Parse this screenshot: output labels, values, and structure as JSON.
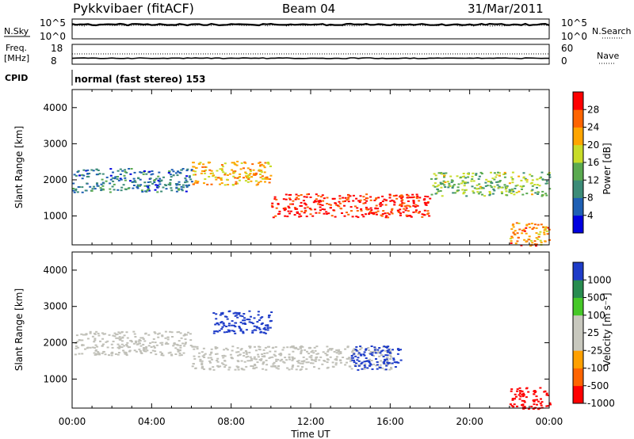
{
  "header": {
    "station": "Pykkvibaer (fitACF)",
    "beam": "Beam 04",
    "date": "31/Mar/2011"
  },
  "noise_panel": {
    "left_label": "N.Sky",
    "right_label": "N.Search",
    "left_ticks": [
      "10^5",
      "10^0"
    ],
    "right_ticks": [
      "10^5",
      "10^0"
    ]
  },
  "freq_panel": {
    "left_label_line1": "Freq.",
    "left_label_line2": "[MHz]",
    "right_label": "Nave",
    "left_ticks": [
      "18",
      "8"
    ],
    "right_ticks": [
      "60",
      "0"
    ]
  },
  "cpid": {
    "label": "CPID",
    "text": "normal (fast stereo) 153"
  },
  "colors": {
    "power_scale": [
      "#0000e0",
      "#1e5fb4",
      "#3c8c78",
      "#5aaa50",
      "#c8dc28",
      "#ffa500",
      "#ff6400",
      "#ff0000"
    ],
    "velocity_scale": [
      "#ff0000",
      "#ff6400",
      "#ffa000",
      "#c8c8be",
      "#c8c8be",
      "#46c828",
      "#288c50",
      "#1e3cc8"
    ],
    "ground_scatter": "#c0c0b8"
  },
  "chart_data": [
    {
      "type": "heatmap",
      "ylabel": "Slant Range [km]",
      "xlabel": "",
      "xlim": [
        "00:00",
        "24:00"
      ],
      "ylim": [
        200,
        4500
      ],
      "y_ticks": [
        "1000",
        "2000",
        "3000",
        "4000"
      ],
      "x_ticks": [
        "00:00",
        "04:00",
        "08:00",
        "12:00",
        "16:00",
        "20:00",
        "00:00"
      ],
      "colorbar_label": "Power [dB]",
      "colorbar_ticks": [
        "4",
        "8",
        "12",
        "16",
        "20",
        "24",
        "28"
      ],
      "colorbar_range": [
        0,
        30
      ],
      "features": [
        {
          "x_start": "00:00",
          "x_end": "06:00",
          "y": 2000,
          "value": 8
        },
        {
          "x_start": "06:00",
          "x_end": "10:00",
          "y": 2200,
          "value": 20
        },
        {
          "x_start": "10:00",
          "x_end": "18:00",
          "y": 1300,
          "value": 28
        },
        {
          "x_start": "18:00",
          "x_end": "24:00",
          "y": 1900,
          "value": 14
        },
        {
          "x_start": "22:00",
          "x_end": "24:00",
          "y": 500,
          "value": 22
        }
      ]
    },
    {
      "type": "heatmap",
      "ylabel": "Slant Range [km]",
      "xlabel": "Time UT",
      "xlim": [
        "00:00",
        "24:00"
      ],
      "ylim": [
        200,
        4500
      ],
      "y_ticks": [
        "1000",
        "2000",
        "3000",
        "4000"
      ],
      "x_ticks": [
        "00:00",
        "04:00",
        "08:00",
        "12:00",
        "16:00",
        "20:00",
        "00:00"
      ],
      "colorbar_label": "Velocity [m s⁻¹]",
      "colorbar_ticks": [
        "1000",
        "500",
        "100",
        "25",
        "-25",
        "-100",
        "-500",
        "-1000"
      ],
      "colorbar_range": [
        -1000,
        1000
      ],
      "features": [
        {
          "x_start": "00:00",
          "x_end": "06:00",
          "y": 2000,
          "value": 0
        },
        {
          "x_start": "06:00",
          "x_end": "16:00",
          "y": 1600,
          "value": 0
        },
        {
          "x_start": "07:00",
          "x_end": "10:00",
          "y": 2600,
          "value": 800
        },
        {
          "x_start": "14:00",
          "x_end": "16:30",
          "y": 1600,
          "value": 800
        },
        {
          "x_start": "22:00",
          "x_end": "24:00",
          "y": 500,
          "value": -600
        }
      ]
    }
  ]
}
